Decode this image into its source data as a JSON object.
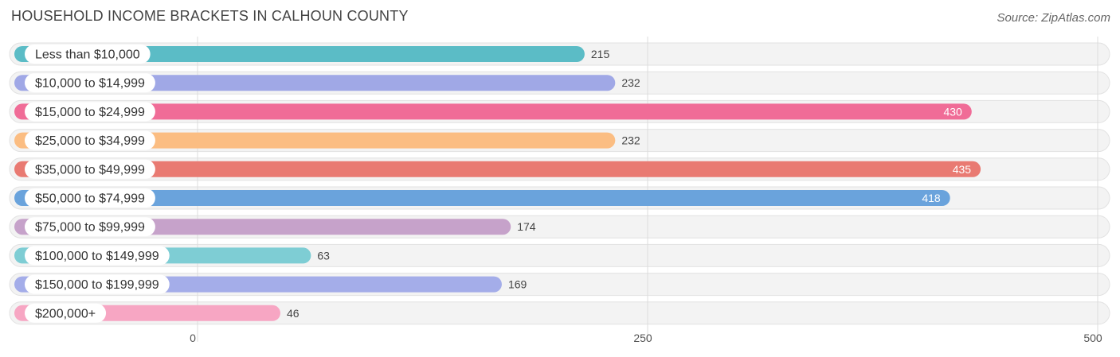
{
  "title": "HOUSEHOLD INCOME BRACKETS IN CALHOUN COUNTY",
  "source": "Source: ZipAtlas.com",
  "chart_data": {
    "type": "bar",
    "orientation": "horizontal",
    "categories": [
      "Less than $10,000",
      "$10,000 to $14,999",
      "$15,000 to $24,999",
      "$25,000 to $34,999",
      "$35,000 to $49,999",
      "$50,000 to $74,999",
      "$75,000 to $99,999",
      "$100,000 to $149,999",
      "$150,000 to $199,999",
      "$200,000+"
    ],
    "values": [
      215,
      232,
      430,
      232,
      435,
      418,
      174,
      63,
      169,
      46
    ],
    "value_labels": [
      "215",
      "232",
      "430",
      "232",
      "435",
      "418",
      "174",
      "63",
      "169",
      "46"
    ],
    "colors": [
      "#5bbcc6",
      "#a0a8e6",
      "#f06c97",
      "#fbbd82",
      "#e97a72",
      "#6aa3dc",
      "#c6a2ca",
      "#7ecdd4",
      "#a4ade9",
      "#f7a6c3"
    ],
    "xlim": [
      0,
      500
    ],
    "xticks": [
      0,
      250,
      500
    ],
    "xtick_labels": [
      "0",
      "250",
      "500"
    ],
    "grid": true
  }
}
